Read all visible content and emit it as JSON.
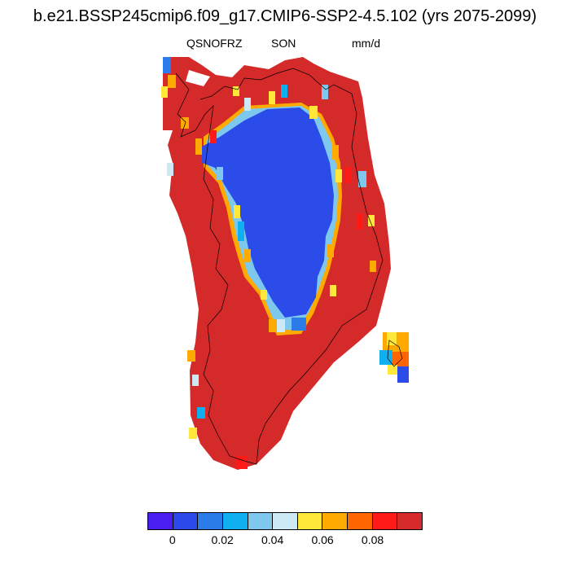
{
  "title": "b.e21.BSSP245cmip6.f09_g17.CMIP6-SSP2-4.5.102 (yrs 2075-2099)",
  "variable": "QSNOFRZ",
  "season": "SON",
  "units": "mm/d",
  "colorbar": {
    "colors": [
      "#4a1ef0",
      "#2b48e8",
      "#2b7be8",
      "#10b0f0",
      "#7ec8ee",
      "#cde9f5",
      "#ffe83a",
      "#ffaa00",
      "#ff6600",
      "#ff1a1a",
      "#d42a2a"
    ],
    "tick_labels": [
      "0",
      "0.02",
      "0.04",
      "0.06",
      "0.08"
    ]
  },
  "map": {
    "region": "Greenland",
    "field_colors": {
      "coast": "#d42a2a",
      "interior": "#2b4ce8",
      "transition": [
        "#ff1a1a",
        "#ff6600",
        "#ffaa00",
        "#ffe83a",
        "#cde9f5",
        "#7ec8ee",
        "#10b0f0",
        "#2b7be8"
      ]
    }
  }
}
